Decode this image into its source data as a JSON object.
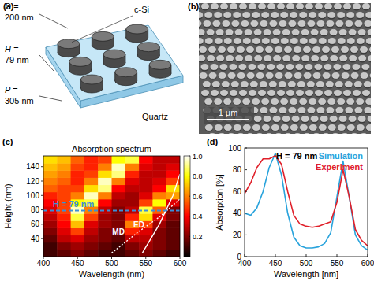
{
  "schematic": {
    "panel_label": "(a)",
    "dimensions": [
      {
        "symbol": "D =",
        "value": "200 nm"
      },
      {
        "symbol": "H =",
        "value": "79 nm"
      },
      {
        "symbol": "P =",
        "value": "305 nm"
      }
    ],
    "disk_material": "c-Si",
    "substrate": "Quartz"
  },
  "sem": {
    "panel_label": "(b)",
    "scale_bar": "1 μm"
  },
  "chart_data": [
    {
      "type": "heatmap",
      "panel_label": "(c)",
      "title": "Absorption spectrum",
      "x_label": "Wavelength (nm)",
      "y_label": "Height (nm)",
      "x": [
        410,
        430,
        450,
        470,
        490,
        510,
        530,
        550,
        570,
        590
      ],
      "y": [
        20,
        30,
        40,
        50,
        60,
        70,
        80,
        90,
        100,
        110,
        120,
        130,
        140,
        150
      ],
      "cells": [
        [
          0.1,
          0.15,
          0.2,
          0.15,
          0.1,
          0.1,
          0.15,
          0.2,
          0.15,
          0.1
        ],
        [
          0.1,
          0.2,
          0.25,
          0.2,
          0.15,
          0.1,
          0.2,
          0.25,
          0.2,
          0.15
        ],
        [
          0.15,
          0.3,
          0.35,
          0.25,
          0.2,
          0.15,
          0.3,
          0.3,
          0.2,
          0.15
        ],
        [
          0.2,
          0.35,
          0.5,
          0.3,
          0.2,
          0.2,
          0.45,
          0.35,
          0.2,
          0.15
        ],
        [
          0.25,
          0.4,
          0.7,
          0.35,
          0.25,
          0.2,
          0.6,
          0.5,
          0.25,
          0.15
        ],
        [
          0.3,
          0.45,
          0.85,
          0.5,
          0.25,
          0.2,
          0.45,
          0.75,
          0.35,
          0.2
        ],
        [
          0.35,
          0.5,
          0.95,
          0.6,
          0.3,
          0.2,
          0.3,
          0.85,
          0.55,
          0.2
        ],
        [
          0.4,
          0.5,
          0.8,
          0.85,
          0.4,
          0.25,
          0.25,
          0.5,
          0.8,
          0.35
        ],
        [
          0.45,
          0.5,
          0.6,
          0.95,
          0.6,
          0.3,
          0.25,
          0.35,
          0.6,
          0.65
        ],
        [
          0.55,
          0.5,
          0.5,
          0.75,
          0.9,
          0.4,
          0.3,
          0.3,
          0.4,
          0.75
        ],
        [
          0.6,
          0.55,
          0.45,
          0.6,
          0.95,
          0.6,
          0.35,
          0.3,
          0.35,
          0.5
        ],
        [
          0.65,
          0.6,
          0.45,
          0.5,
          0.75,
          0.9,
          0.45,
          0.3,
          0.3,
          0.4
        ],
        [
          0.7,
          0.65,
          0.5,
          0.45,
          0.6,
          0.95,
          0.6,
          0.35,
          0.3,
          0.35
        ],
        [
          0.75,
          0.7,
          0.55,
          0.45,
          0.5,
          0.8,
          0.85,
          0.4,
          0.3,
          0.3
        ]
      ],
      "xlim": [
        400,
        600
      ],
      "ylim": [
        15,
        155
      ],
      "xticks": [
        400,
        450,
        500,
        550,
        600
      ],
      "yticks": [
        40,
        60,
        80,
        100,
        120,
        140
      ],
      "colorbar": {
        "range": [
          0,
          1
        ],
        "ticks": [
          0.2,
          0.4,
          0.6,
          0.8,
          {
            "value": 1,
            "label": "1.0"
          }
        ]
      },
      "curves": [
        {
          "name": "MD",
          "line_style": "dotted",
          "color": "#ffffff",
          "x": [
            500,
            540,
            570,
            600
          ],
          "y": [
            20,
            50,
            70,
            95
          ]
        },
        {
          "name": "ED",
          "line_style": "solid",
          "color": "#ffffff",
          "x": [
            545,
            570,
            590,
            600
          ],
          "y": [
            20,
            60,
            100,
            130
          ]
        }
      ],
      "reference_line": {
        "label": "H = 79 nm",
        "y": 79,
        "color": "#3b8fd9",
        "line_style": "dashed"
      }
    },
    {
      "type": "line",
      "panel_label": "(d)",
      "annotation": "H = 79 nm",
      "x_label": "Wavelength [nm]",
      "y_label": "Absorption [%]",
      "x": [
        400,
        410,
        420,
        430,
        440,
        450,
        460,
        470,
        480,
        490,
        500,
        510,
        520,
        530,
        540,
        550,
        560,
        570,
        580,
        590,
        600
      ],
      "series": [
        {
          "name": "Simulation",
          "color": "#29a3dc",
          "values": [
            40,
            38,
            45,
            60,
            82,
            95,
            75,
            40,
            18,
            10,
            8,
            8,
            9,
            12,
            22,
            55,
            88,
            55,
            20,
            10,
            6
          ]
        },
        {
          "name": "Experiment",
          "color": "#e0202a",
          "values": [
            58,
            68,
            82,
            90,
            90,
            93,
            85,
            60,
            38,
            30,
            28,
            27,
            28,
            30,
            32,
            50,
            80,
            55,
            25,
            15,
            10
          ]
        }
      ],
      "xlim": [
        400,
        600
      ],
      "ylim": [
        0,
        100
      ],
      "xticks": [
        400,
        450,
        500,
        550,
        600
      ],
      "yticks": [
        0,
        20,
        40,
        60,
        80,
        100
      ],
      "legend": "top-right"
    }
  ]
}
